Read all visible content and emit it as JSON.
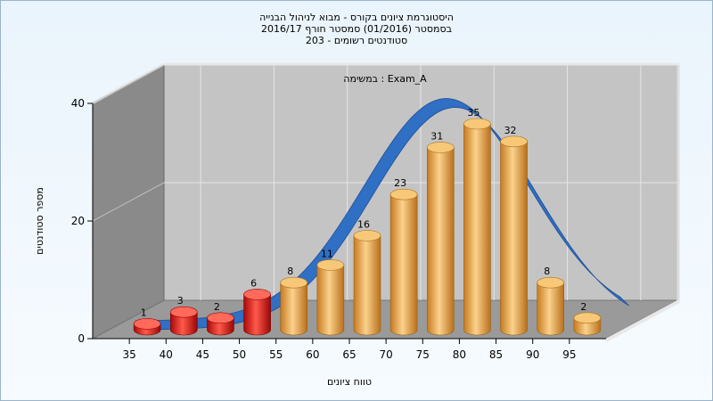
{
  "header": {
    "line1": "היסטוגרמת ציונים בקורס - מבוא לניהול הבנייה",
    "line2": "בסמסטר  (01/2016)  סמסטר חורף 2016/17",
    "line3": "סטודנטים רשומים - 203"
  },
  "chart_data": {
    "type": "bar",
    "annotation": "במשימה : Exam_A",
    "xlabel": "טווח ציונים",
    "ylabel": "מספר סטודנטים",
    "categories": [
      "35",
      "40",
      "45",
      "50",
      "55",
      "60",
      "65",
      "70",
      "75",
      "80",
      "85",
      "90",
      "95"
    ],
    "values": [
      1,
      3,
      2,
      6,
      8,
      11,
      16,
      23,
      31,
      35,
      32,
      8,
      2
    ],
    "failing_categories": [
      "35",
      "40",
      "45",
      "50"
    ],
    "ylim": [
      0,
      40
    ],
    "yticks": [
      0,
      20,
      40
    ],
    "grid": true,
    "legend": "none",
    "trend_curve": true,
    "colors": {
      "failing": "#e01010",
      "passing": "#e8a040",
      "curve": "#2f6fc4",
      "back_wall": "#c4c4c4",
      "side_wall": "#8a8a8a",
      "floor": "#9a9a9a"
    }
  }
}
